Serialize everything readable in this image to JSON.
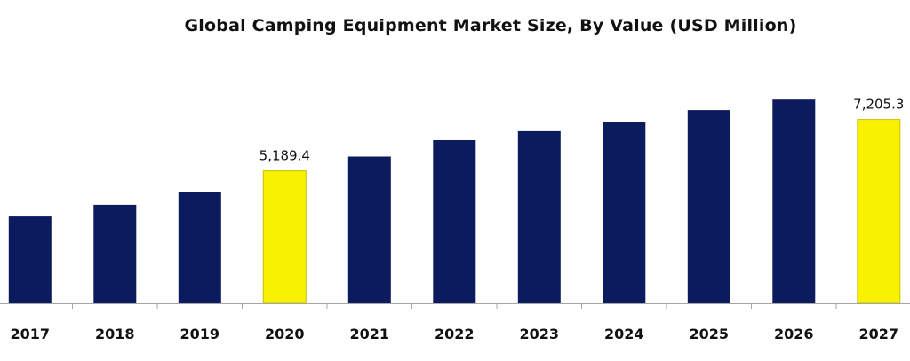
{
  "chart_data": {
    "type": "bar",
    "title": "Global Camping Equipment Market Size, By Value (USD Million)",
    "xlabel": "",
    "ylabel": "",
    "categories": [
      "2017",
      "2018",
      "2019",
      "2020",
      "2021",
      "2022",
      "2023",
      "2024",
      "2025",
      "2026",
      "2027"
    ],
    "values": [
      3400,
      3860,
      4360,
      5189.4,
      5750,
      6390,
      6740,
      7110,
      7570,
      7980,
      7205.3
    ],
    "value_labels": [
      "",
      "",
      "",
      "5,189.4",
      "",
      "",
      "",
      "",
      "",
      "",
      "7,205.3"
    ],
    "highlight_indices": [
      3,
      10
    ],
    "ylim": [
      0,
      9100
    ],
    "grid": false,
    "legend": "none",
    "colors": {
      "bar": "#0c1a5e",
      "highlight": "#f8f200",
      "highlight_border": "#c9c000",
      "axis": "#a6a6a6",
      "text": "#111111"
    }
  }
}
